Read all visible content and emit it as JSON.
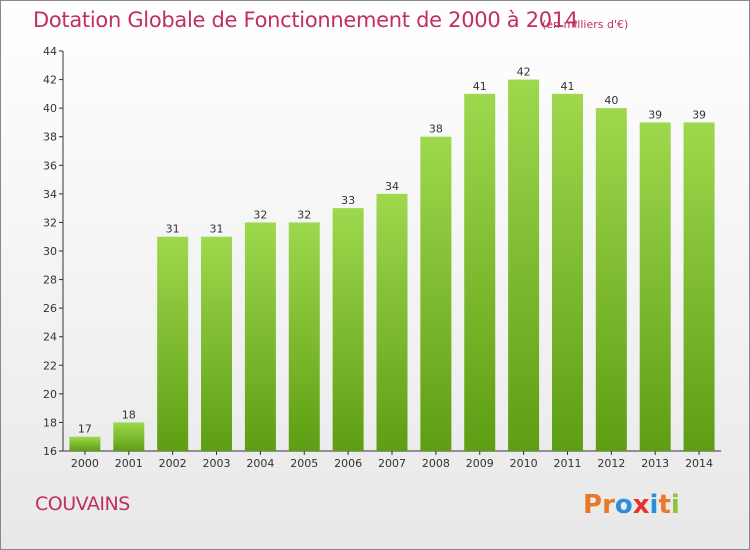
{
  "header": {
    "title": "Dotation Globale de Fonctionnement de 2000 à 2014",
    "unit": "(en milliers d'€)"
  },
  "footer": {
    "commune": "COUVAINS",
    "logo": "Proxiti"
  },
  "colors": {
    "title": "#c0305a",
    "bar_top": "#9ed84d",
    "bar_bottom": "#5e9e14",
    "logo_letters": [
      "#e8792a",
      "#e8792a",
      "#2a8fd8",
      "#e83030",
      "#2a8fd8",
      "#e8792a",
      "#8fc23a"
    ]
  },
  "chart_data": {
    "type": "bar",
    "categories": [
      "2000",
      "2001",
      "2002",
      "2003",
      "2004",
      "2005",
      "2006",
      "2007",
      "2008",
      "2009",
      "2010",
      "2011",
      "2012",
      "2013",
      "2014"
    ],
    "values": [
      17,
      18,
      31,
      31,
      32,
      32,
      33,
      34,
      38,
      41,
      42,
      41,
      40,
      39,
      39
    ],
    "title": "Dotation Globale de Fonctionnement de 2000 à 2014",
    "subtitle": "(en milliers d'€)",
    "ylim": [
      16,
      44
    ],
    "yticks": [
      16,
      18,
      20,
      22,
      24,
      26,
      28,
      30,
      32,
      34,
      36,
      38,
      40,
      42,
      44
    ],
    "grid": false,
    "data_labels": true
  }
}
